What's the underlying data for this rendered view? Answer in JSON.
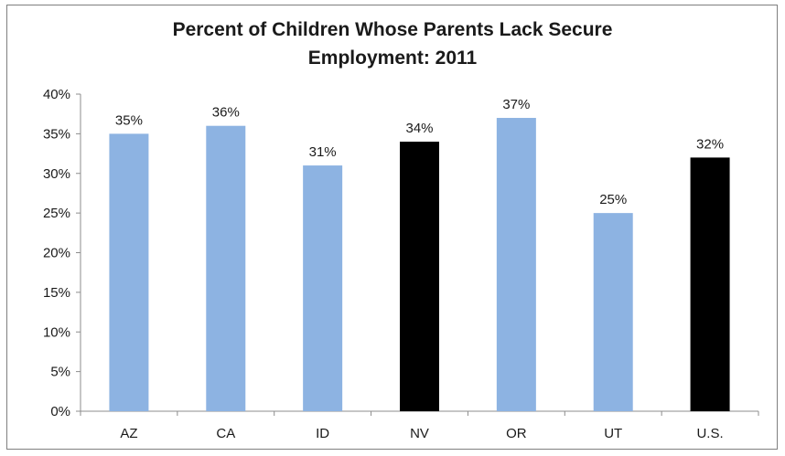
{
  "chart_data": {
    "type": "bar",
    "title_line1": "Percent of Children Whose Parents Lack Secure",
    "title_line2": "Employment: 2011",
    "categories": [
      "AZ",
      "CA",
      "ID",
      "NV",
      "OR",
      "UT",
      "U.S."
    ],
    "values": [
      35,
      36,
      31,
      34,
      37,
      25,
      32
    ],
    "data_labels": [
      "35%",
      "36%",
      "31%",
      "34%",
      "37%",
      "25%",
      "32%"
    ],
    "bar_colors": [
      "#8db3e2",
      "#8db3e2",
      "#8db3e2",
      "#000000",
      "#8db3e2",
      "#8db3e2",
      "#000000"
    ],
    "ylim": [
      0,
      40
    ],
    "yticks": [
      0,
      5,
      10,
      15,
      20,
      25,
      30,
      35,
      40
    ],
    "ytick_labels": [
      "0%",
      "5%",
      "10%",
      "15%",
      "20%",
      "25%",
      "30%",
      "35%",
      "40%"
    ],
    "grid": false,
    "legend": "none"
  }
}
